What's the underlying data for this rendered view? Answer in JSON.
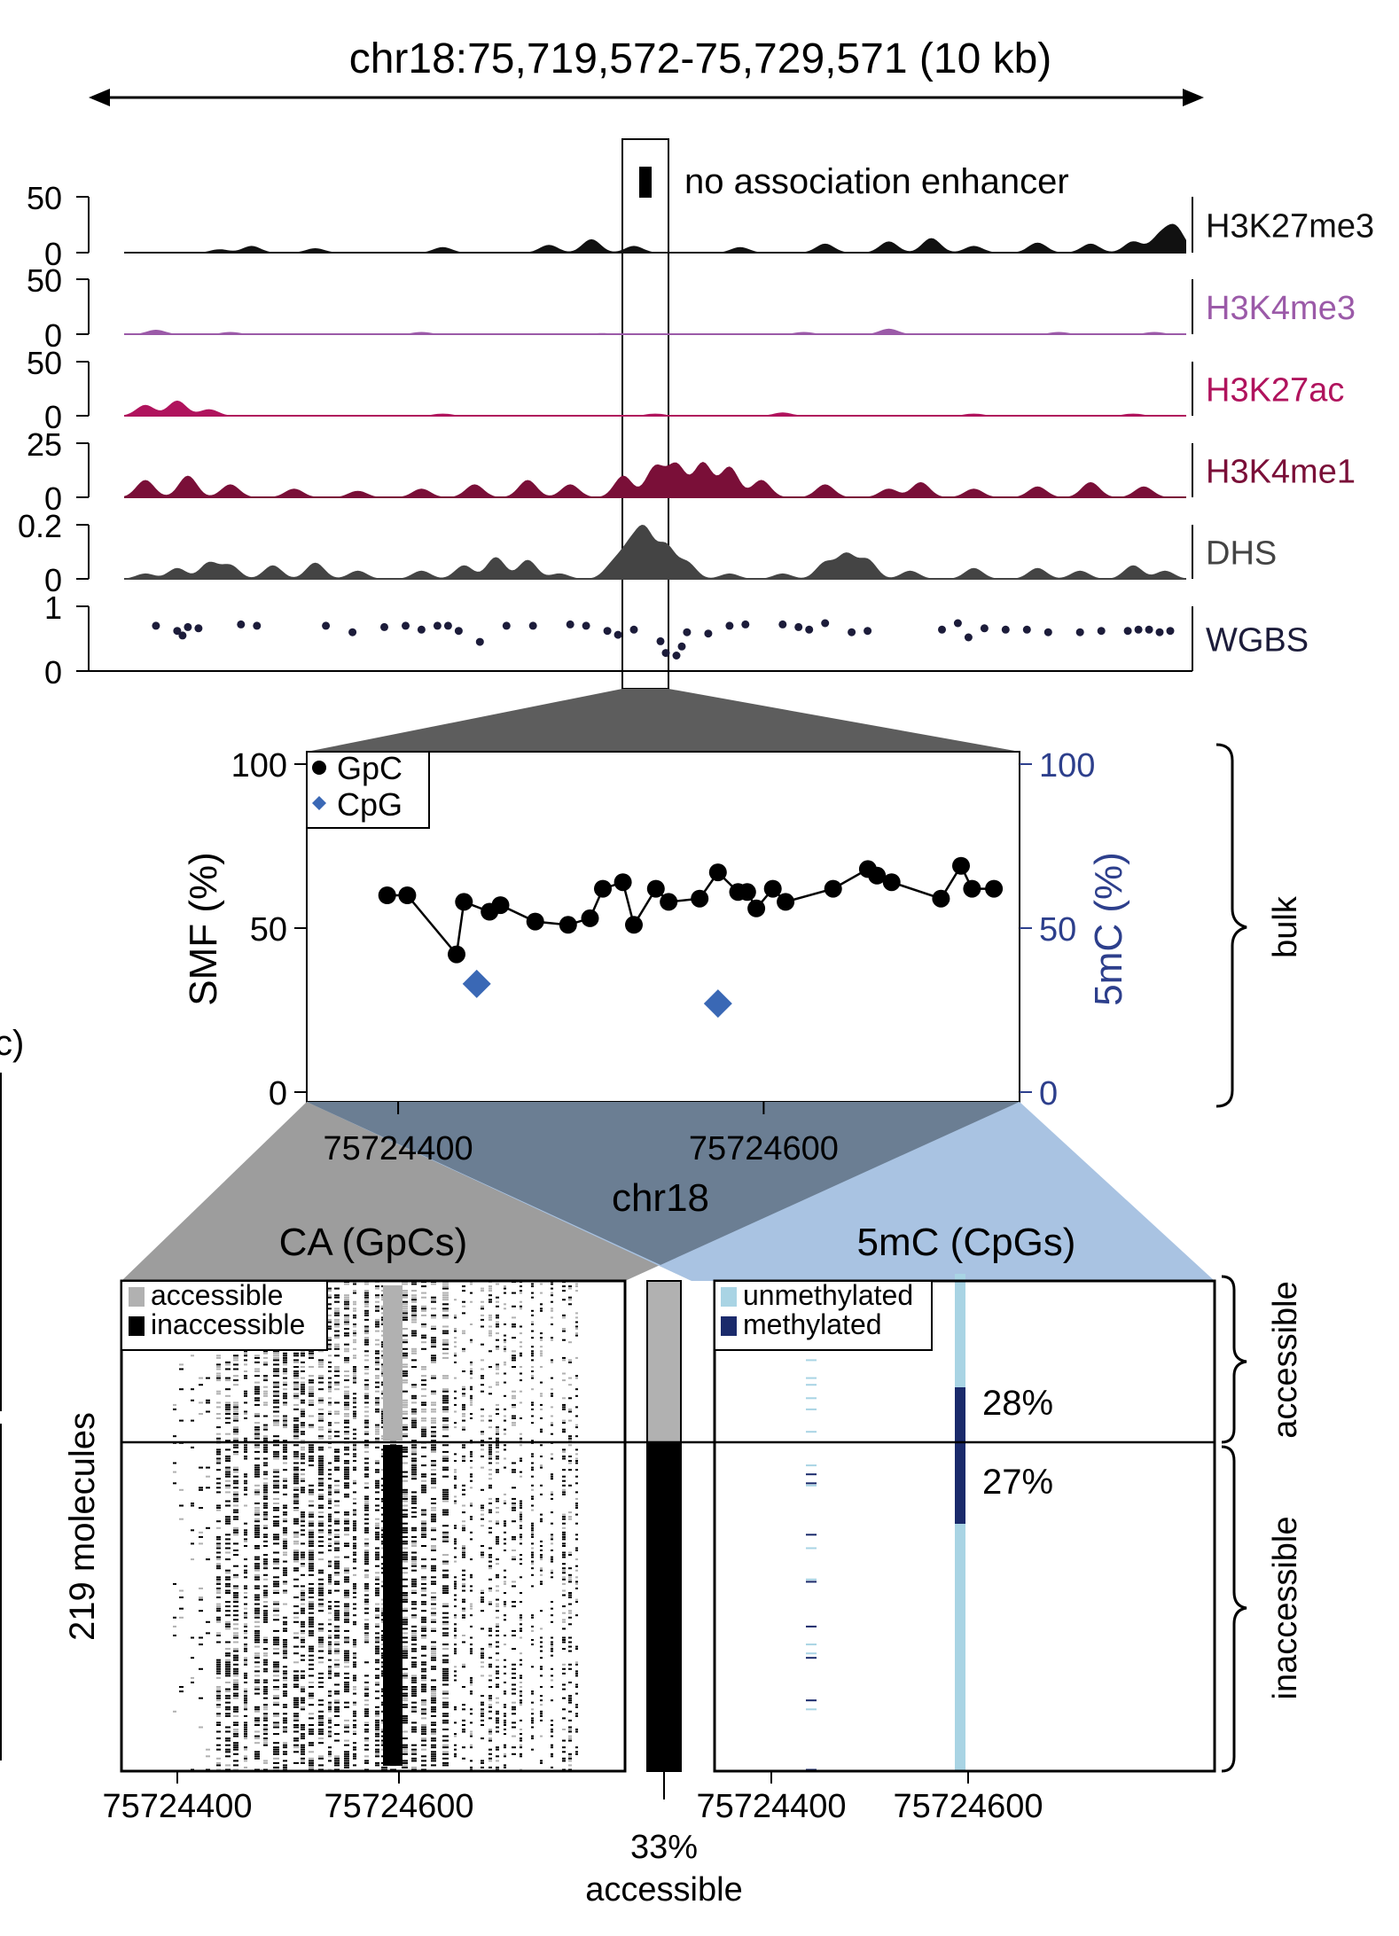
{
  "colors": {
    "H3K27me3": "#111111",
    "H3K4me3": "#9b5aa8",
    "H3K27ac": "#b0135d",
    "H3K4me1": "#7a0f38",
    "DHS": "#444444",
    "WGBS": "#1c1c3a",
    "gpc": "#000000",
    "cpg": "#3a68b5",
    "axis_blue": "#2d3f8c",
    "accessible": "#b1b1b1",
    "inaccessible": "#000000",
    "unmethylated": "#a9d4e4",
    "methylated": "#1a2a6b",
    "zoom_dark": "#5d5d5d",
    "zoom_gray": "#9d9d9d",
    "zoom_blue": "#a9c3e2",
    "zoom_overlap": "#6b7e93"
  },
  "region_label": "chr18:75,719,572-75,729,571 (10 kb)",
  "enhancer_label": "no association enhancer",
  "tracks": [
    {
      "name": "H3K27me3",
      "ymax": "50",
      "ymin": "0",
      "peaks": [
        [
          0.09,
          3
        ],
        [
          0.12,
          6
        ],
        [
          0.18,
          4
        ],
        [
          0.3,
          5
        ],
        [
          0.4,
          7
        ],
        [
          0.44,
          12
        ],
        [
          0.48,
          6
        ],
        [
          0.58,
          5
        ],
        [
          0.66,
          8
        ],
        [
          0.72,
          10
        ],
        [
          0.76,
          13
        ],
        [
          0.8,
          6
        ],
        [
          0.86,
          9
        ],
        [
          0.91,
          8
        ],
        [
          0.95,
          10
        ],
        [
          0.975,
          14
        ],
        [
          0.99,
          22
        ]
      ]
    },
    {
      "name": "H3K4me3",
      "ymax": "50",
      "ymin": "0",
      "peaks": [
        [
          0.03,
          4
        ],
        [
          0.1,
          2
        ],
        [
          0.28,
          2
        ],
        [
          0.45,
          1
        ],
        [
          0.64,
          2
        ],
        [
          0.72,
          5
        ],
        [
          0.88,
          2
        ],
        [
          0.97,
          2
        ]
      ]
    },
    {
      "name": "H3K27ac",
      "ymax": "50",
      "ymin": "0",
      "peaks": [
        [
          0.02,
          10
        ],
        [
          0.05,
          14
        ],
        [
          0.08,
          6
        ],
        [
          0.3,
          2
        ],
        [
          0.5,
          2
        ],
        [
          0.62,
          3
        ],
        [
          0.8,
          2
        ],
        [
          0.95,
          2
        ]
      ]
    },
    {
      "name": "H3K4me1",
      "ymax": "25",
      "ymin": "0",
      "peaks": [
        [
          0.02,
          8
        ],
        [
          0.06,
          10
        ],
        [
          0.1,
          6
        ],
        [
          0.16,
          4
        ],
        [
          0.22,
          3
        ],
        [
          0.28,
          4
        ],
        [
          0.33,
          6
        ],
        [
          0.38,
          8
        ],
        [
          0.42,
          6
        ],
        [
          0.47,
          10
        ],
        [
          0.5,
          14
        ],
        [
          0.52,
          15
        ],
        [
          0.545,
          16
        ],
        [
          0.57,
          14
        ],
        [
          0.6,
          8
        ],
        [
          0.66,
          6
        ],
        [
          0.72,
          4
        ],
        [
          0.75,
          7
        ],
        [
          0.8,
          4
        ],
        [
          0.86,
          5
        ],
        [
          0.91,
          7
        ],
        [
          0.96,
          5
        ]
      ]
    },
    {
      "name": "DHS",
      "ymax": "0.2",
      "ymin": "0",
      "peaks": [
        [
          0.02,
          0.02
        ],
        [
          0.05,
          0.04
        ],
        [
          0.08,
          0.06
        ],
        [
          0.1,
          0.05
        ],
        [
          0.14,
          0.05
        ],
        [
          0.18,
          0.06
        ],
        [
          0.22,
          0.03
        ],
        [
          0.28,
          0.03
        ],
        [
          0.32,
          0.05
        ],
        [
          0.35,
          0.08
        ],
        [
          0.38,
          0.07
        ],
        [
          0.41,
          0.02
        ],
        [
          0.46,
          0.05
        ],
        [
          0.475,
          0.1
        ],
        [
          0.49,
          0.17
        ],
        [
          0.51,
          0.12
        ],
        [
          0.53,
          0.06
        ],
        [
          0.57,
          0.02
        ],
        [
          0.62,
          0.02
        ],
        [
          0.66,
          0.06
        ],
        [
          0.68,
          0.09
        ],
        [
          0.7,
          0.07
        ],
        [
          0.74,
          0.03
        ],
        [
          0.8,
          0.04
        ],
        [
          0.86,
          0.04
        ],
        [
          0.9,
          0.03
        ],
        [
          0.95,
          0.05
        ],
        [
          0.98,
          0.03
        ]
      ]
    },
    {
      "name": "WGBS",
      "ymax": "1",
      "ymin": "0",
      "points": [
        [
          0.03,
          0.7
        ],
        [
          0.05,
          0.62
        ],
        [
          0.055,
          0.55
        ],
        [
          0.06,
          0.68
        ],
        [
          0.07,
          0.66
        ],
        [
          0.11,
          0.72
        ],
        [
          0.125,
          0.7
        ],
        [
          0.19,
          0.7
        ],
        [
          0.215,
          0.6
        ],
        [
          0.245,
          0.68
        ],
        [
          0.265,
          0.7
        ],
        [
          0.28,
          0.64
        ],
        [
          0.295,
          0.7
        ],
        [
          0.305,
          0.7
        ],
        [
          0.315,
          0.62
        ],
        [
          0.335,
          0.45
        ],
        [
          0.36,
          0.7
        ],
        [
          0.385,
          0.7
        ],
        [
          0.42,
          0.72
        ],
        [
          0.435,
          0.7
        ],
        [
          0.455,
          0.62
        ],
        [
          0.465,
          0.56
        ],
        [
          0.48,
          0.64
        ],
        [
          0.505,
          0.46
        ],
        [
          0.51,
          0.28
        ],
        [
          0.52,
          0.24
        ],
        [
          0.525,
          0.38
        ],
        [
          0.53,
          0.6
        ],
        [
          0.55,
          0.58
        ],
        [
          0.57,
          0.7
        ],
        [
          0.585,
          0.72
        ],
        [
          0.62,
          0.72
        ],
        [
          0.635,
          0.68
        ],
        [
          0.645,
          0.64
        ],
        [
          0.66,
          0.74
        ],
        [
          0.685,
          0.6
        ],
        [
          0.7,
          0.62
        ],
        [
          0.77,
          0.64
        ],
        [
          0.785,
          0.74
        ],
        [
          0.795,
          0.52
        ],
        [
          0.81,
          0.66
        ],
        [
          0.83,
          0.64
        ],
        [
          0.85,
          0.64
        ],
        [
          0.87,
          0.6
        ],
        [
          0.9,
          0.6
        ],
        [
          0.92,
          0.62
        ],
        [
          0.945,
          0.62
        ],
        [
          0.955,
          0.64
        ],
        [
          0.965,
          0.64
        ],
        [
          0.975,
          0.6
        ],
        [
          0.985,
          0.62
        ]
      ]
    }
  ],
  "bulk_label": "bulk",
  "chart_data": [
    {
      "type": "scatter",
      "title": "",
      "xlabel": "chr18",
      "ylabel": "SMF (%)",
      "y2label": "5mC (%)",
      "xlim": [
        75724350,
        75724740
      ],
      "ylim": [
        0,
        100
      ],
      "xticks": [
        "75724400",
        "75724600"
      ],
      "yticks": [
        "0",
        "50",
        "100"
      ],
      "y2ticks": [
        "0",
        "50",
        "100"
      ],
      "legend": [
        "GpC",
        "CpG"
      ],
      "series": [
        {
          "name": "GpC",
          "x": [
            75724394,
            75724405,
            75724432,
            75724436,
            75724450,
            75724456,
            75724475,
            75724493,
            75724505,
            75724512,
            75724523,
            75724529,
            75724541,
            75724548,
            75724565,
            75724575,
            75724586,
            75724591,
            75724596,
            75724605,
            75724612,
            75724638,
            75724657,
            75724662,
            75724670,
            75724697,
            75724708,
            75724714,
            75724726
          ],
          "y": [
            60,
            60,
            42,
            58,
            55,
            57,
            52,
            51,
            53,
            62,
            64,
            51,
            62,
            58,
            59,
            67,
            61,
            61,
            56,
            62,
            58,
            62,
            68,
            66,
            64,
            59,
            69,
            62,
            62
          ]
        },
        {
          "name": "CpG",
          "x": [
            75724443,
            75724575
          ],
          "y": [
            33,
            27
          ]
        }
      ]
    },
    {
      "type": "heatmap",
      "title": "CA (GpCs)",
      "ylabel": "219 molecules",
      "xticks": [
        "75724400",
        "75724600"
      ],
      "legend": [
        "accessible",
        "inaccessible"
      ],
      "n_molecules": 219,
      "accessible_fraction": 0.33
    },
    {
      "type": "bar",
      "title": "",
      "categories": [
        "accessible",
        "inaccessible"
      ],
      "values": [
        33,
        67
      ],
      "label": "33%",
      "sublabel": "accessible"
    },
    {
      "type": "heatmap",
      "title": "5mC (CpGs)",
      "xticks": [
        "75724400",
        "75724600"
      ],
      "legend": [
        "unmethylated",
        "methylated"
      ],
      "methylated_accessible_pct": 28,
      "methylated_inaccessible_pct": 27,
      "label_accessible": "28%",
      "label_inaccessible": "27%"
    }
  ],
  "group_labels": {
    "accessible": "accessible",
    "inaccessible": "inaccessible"
  },
  "panel_letter_fragment": "c)"
}
